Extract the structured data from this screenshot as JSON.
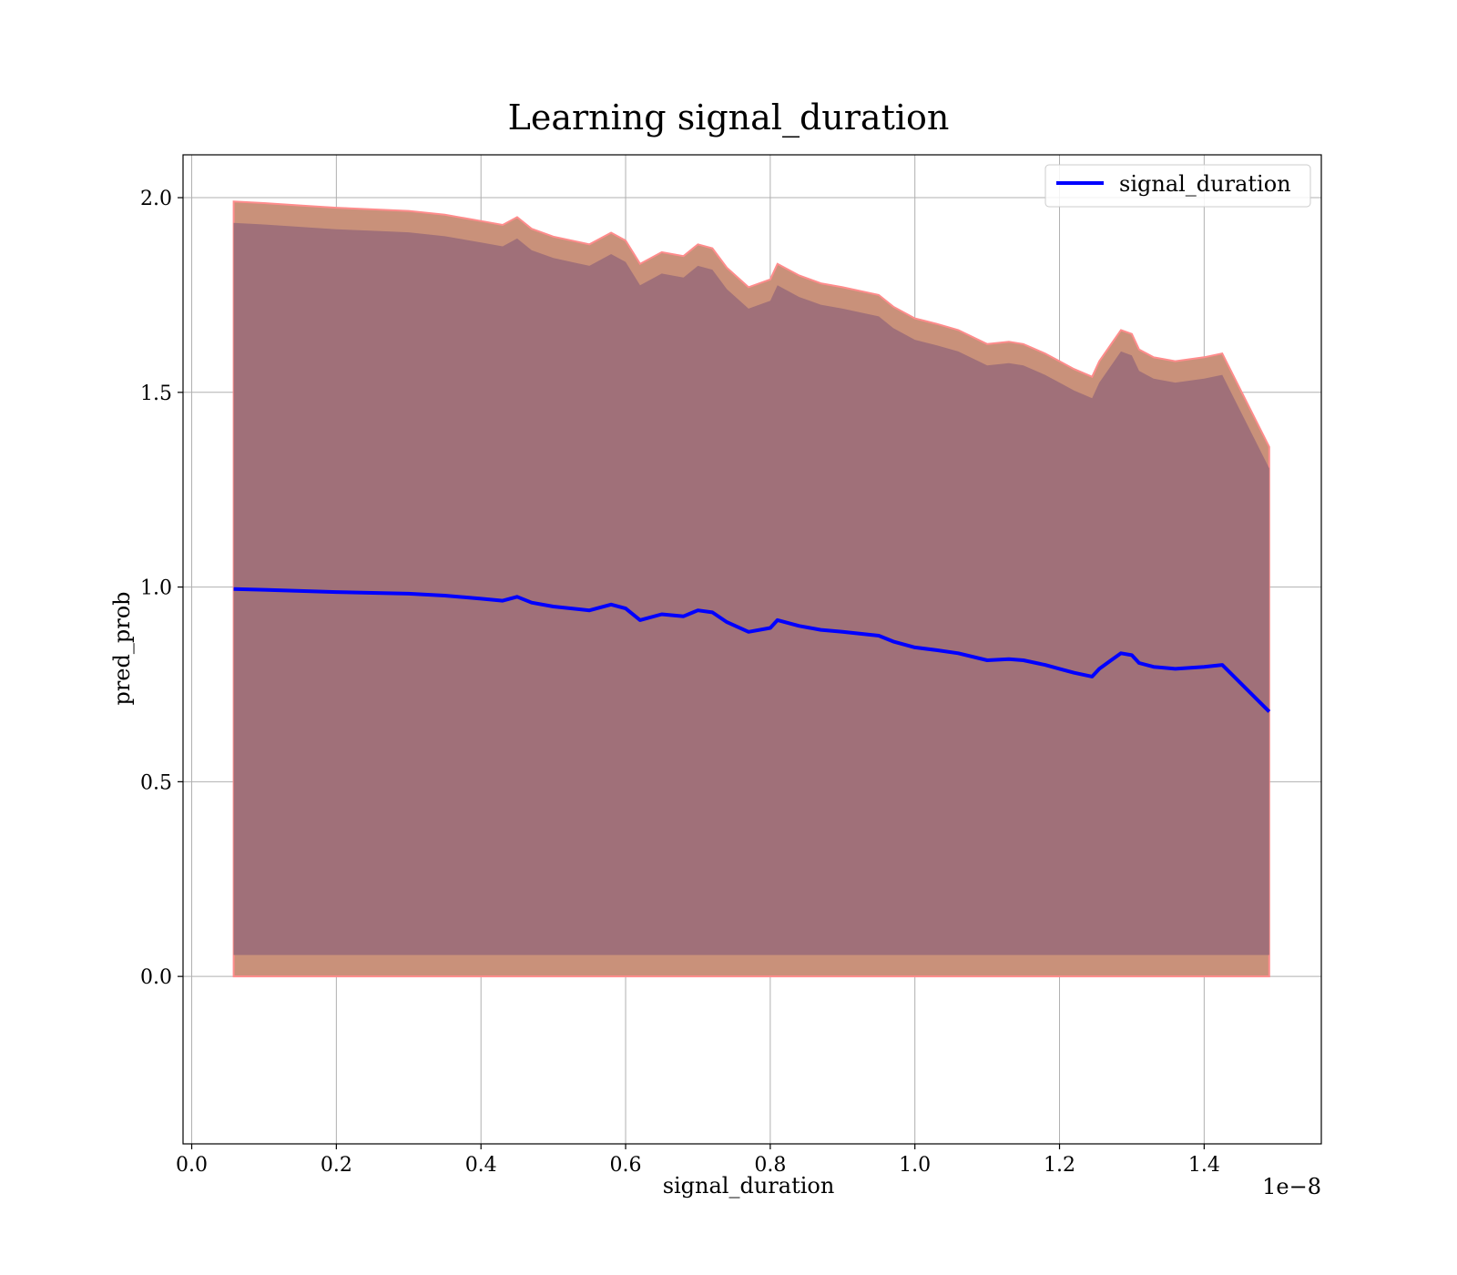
{
  "chart_data": {
    "type": "line",
    "title": "Learning signal_duration",
    "xlabel": "signal_duration",
    "ylabel": "pred_prob",
    "x_offset_label": "1e−8",
    "xlim": [
      -0.012,
      1.562
    ],
    "ylim": [
      -0.43,
      2.11
    ],
    "xticks": [
      0.0,
      0.2,
      0.4,
      0.6,
      0.8,
      1.0,
      1.2,
      1.4
    ],
    "xtick_labels": [
      "0.0",
      "0.2",
      "0.4",
      "0.6",
      "0.8",
      "1.0",
      "1.2",
      "1.4"
    ],
    "yticks": [
      0.0,
      0.5,
      1.0,
      1.5,
      2.0
    ],
    "ytick_labels": [
      "0.0",
      "0.5",
      "1.0",
      "1.5",
      "2.0"
    ],
    "grid": true,
    "legend_position": "top-right",
    "colors": {
      "line": "#0000ff",
      "outer_band_fill": "#c9917a",
      "outer_band_edge": "#ff8c8c",
      "inner_band_fill": "#a07079"
    },
    "series": [
      {
        "name": "signal_duration",
        "x": [
          0.058,
          0.1,
          0.15,
          0.2,
          0.25,
          0.3,
          0.35,
          0.4,
          0.43,
          0.45,
          0.47,
          0.5,
          0.55,
          0.58,
          0.6,
          0.62,
          0.65,
          0.68,
          0.7,
          0.72,
          0.74,
          0.77,
          0.8,
          0.81,
          0.84,
          0.87,
          0.9,
          0.95,
          0.97,
          1.0,
          1.03,
          1.06,
          1.1,
          1.13,
          1.15,
          1.18,
          1.2,
          1.22,
          1.245,
          1.255,
          1.27,
          1.285,
          1.3,
          1.31,
          1.33,
          1.36,
          1.4,
          1.425,
          1.49
        ],
        "values": [
          0.995,
          0.993,
          0.99,
          0.987,
          0.985,
          0.983,
          0.978,
          0.97,
          0.965,
          0.975,
          0.96,
          0.95,
          0.94,
          0.955,
          0.945,
          0.915,
          0.93,
          0.925,
          0.94,
          0.935,
          0.91,
          0.885,
          0.895,
          0.915,
          0.9,
          0.89,
          0.885,
          0.875,
          0.86,
          0.845,
          0.838,
          0.83,
          0.812,
          0.815,
          0.812,
          0.8,
          0.79,
          0.78,
          0.77,
          0.79,
          0.81,
          0.83,
          0.825,
          0.805,
          0.795,
          0.79,
          0.795,
          0.8,
          0.68
        ],
        "band_halfwidth_outer": [
          0.995,
          0.993,
          0.99,
          0.987,
          0.985,
          0.983,
          0.978,
          0.97,
          0.965,
          0.975,
          0.96,
          0.95,
          0.94,
          0.955,
          0.945,
          0.915,
          0.93,
          0.925,
          0.94,
          0.935,
          0.91,
          0.885,
          0.895,
          0.915,
          0.9,
          0.89,
          0.885,
          0.875,
          0.86,
          0.845,
          0.838,
          0.83,
          0.812,
          0.815,
          0.812,
          0.8,
          0.79,
          0.78,
          0.77,
          0.79,
          0.81,
          0.83,
          0.825,
          0.805,
          0.795,
          0.79,
          0.795,
          0.8,
          0.68
        ],
        "band_halfwidth_inner": [
          0.94,
          0.938,
          0.935,
          0.932,
          0.93,
          0.928,
          0.923,
          0.915,
          0.91,
          0.92,
          0.905,
          0.895,
          0.885,
          0.9,
          0.89,
          0.86,
          0.875,
          0.87,
          0.885,
          0.88,
          0.855,
          0.83,
          0.84,
          0.86,
          0.845,
          0.835,
          0.83,
          0.82,
          0.805,
          0.79,
          0.783,
          0.775,
          0.757,
          0.76,
          0.757,
          0.745,
          0.735,
          0.725,
          0.715,
          0.735,
          0.755,
          0.775,
          0.77,
          0.75,
          0.74,
          0.735,
          0.74,
          0.745,
          0.625
        ]
      }
    ]
  }
}
